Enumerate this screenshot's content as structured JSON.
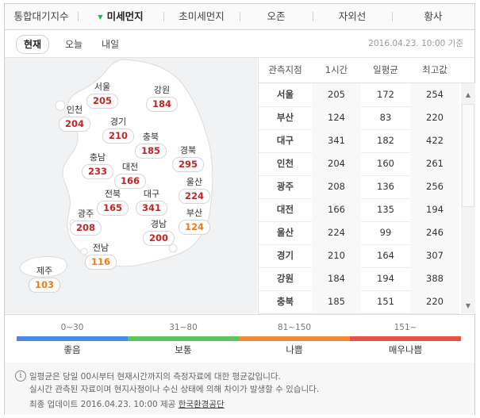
{
  "tabs": [
    {
      "label": "통합대기지수",
      "active": false
    },
    {
      "label": "미세먼지",
      "active": true
    },
    {
      "label": "초미세먼지",
      "active": false
    },
    {
      "label": "오존",
      "active": false
    },
    {
      "label": "자외선",
      "active": false
    },
    {
      "label": "황사",
      "active": false
    }
  ],
  "subtabs": {
    "current": "현재",
    "today": "오늘",
    "tomorrow": "내일"
  },
  "timestamp": "2016.04.23. 10:00 기준",
  "map_regions": [
    {
      "name": "서울",
      "value": "205",
      "color": "#c42424"
    },
    {
      "name": "강원",
      "value": "184",
      "color": "#c42424"
    },
    {
      "name": "인천",
      "value": "204",
      "color": "#c42424"
    },
    {
      "name": "경기",
      "value": "210",
      "color": "#c42424"
    },
    {
      "name": "충북",
      "value": "185",
      "color": "#c42424"
    },
    {
      "name": "충남",
      "value": "233",
      "color": "#c42424"
    },
    {
      "name": "대전",
      "value": "166",
      "color": "#c42424"
    },
    {
      "name": "경북",
      "value": "295",
      "color": "#c42424"
    },
    {
      "name": "울산",
      "value": "224",
      "color": "#c42424"
    },
    {
      "name": "전북",
      "value": "165",
      "color": "#c42424"
    },
    {
      "name": "대구",
      "value": "341",
      "color": "#c42424"
    },
    {
      "name": "광주",
      "value": "208",
      "color": "#c42424"
    },
    {
      "name": "경남",
      "value": "200",
      "color": "#c42424"
    },
    {
      "name": "부산",
      "value": "124",
      "color": "#f07a14"
    },
    {
      "name": "전남",
      "value": "116",
      "color": "#f07a14"
    },
    {
      "name": "제주",
      "value": "103",
      "color": "#f07a14"
    }
  ],
  "table": {
    "headers": [
      "관측지점",
      "1시간",
      "일평균",
      "최고값"
    ],
    "rows": [
      [
        "서울",
        "205",
        "172",
        "254"
      ],
      [
        "부산",
        "124",
        "83",
        "220"
      ],
      [
        "대구",
        "341",
        "182",
        "422"
      ],
      [
        "인천",
        "204",
        "160",
        "261"
      ],
      [
        "광주",
        "208",
        "136",
        "256"
      ],
      [
        "대전",
        "166",
        "135",
        "194"
      ],
      [
        "울산",
        "224",
        "99",
        "246"
      ],
      [
        "경기",
        "210",
        "164",
        "307"
      ],
      [
        "강원",
        "184",
        "194",
        "388"
      ],
      [
        "충북",
        "185",
        "151",
        "220"
      ]
    ]
  },
  "legend": [
    {
      "range": "0~30",
      "label": "좋음",
      "color": "#4a86e8"
    },
    {
      "range": "31~80",
      "label": "보통",
      "color": "#5cc45c"
    },
    {
      "range": "81~150",
      "label": "나쁨",
      "color": "#f5873a"
    },
    {
      "range": "151~",
      "label": "매우나쁨",
      "color": "#e8504a"
    }
  ],
  "note": {
    "line1": "일평균은 당일 00시부터 현재시간까지의 측정자료에 대한 평균값입니다.",
    "line2": "실시간 관측된 자료이며 현지사정이나 수신 상태에 의해 차이가 발생할 수 있습니다.",
    "updated_prefix": "최종 업데이트 2016.04.23. 10:00 제공",
    "provider": "한국환경공단"
  }
}
